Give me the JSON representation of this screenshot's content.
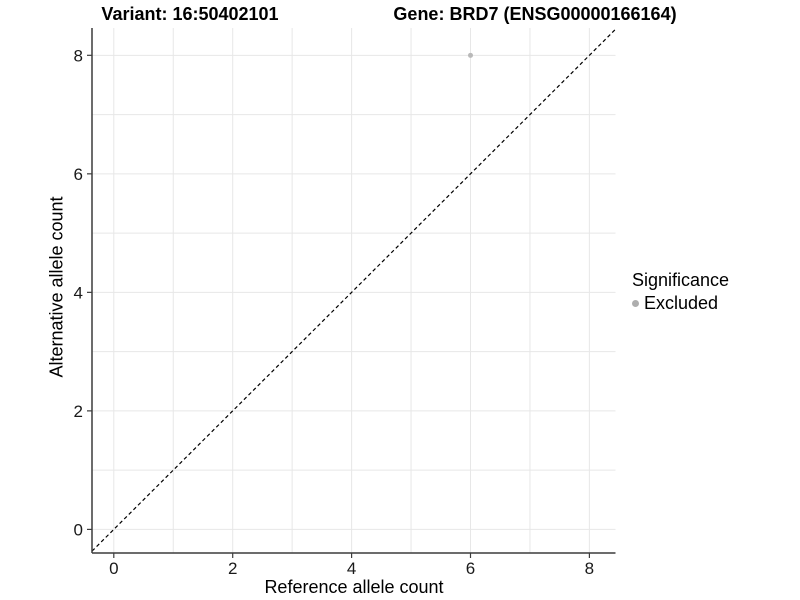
{
  "titles": {
    "variant": "Variant: 16:50402101",
    "gene": "Gene: BRD7 (ENSG00000166164)"
  },
  "axes": {
    "x_label": "Reference allele count",
    "y_label": "Alternative allele count"
  },
  "legend": {
    "title": "Significance",
    "items": [
      {
        "label": "Excluded",
        "color": "#aeaeae"
      }
    ]
  },
  "colors": {
    "background": "#ffffff",
    "gridline": "#e7e7e7",
    "axis_line": "#3c3c3c",
    "tick_mark": "#3c3c3c",
    "tick_text": "#1a1a1a",
    "reference_line": "#000000",
    "point": "#b9b9b9",
    "legend_key": "#aeaeae"
  },
  "chart_data": {
    "type": "scatter",
    "title": "Variant: 16:50402101   Gene: BRD7 (ENSG00000166164)",
    "xlabel": "Reference allele count",
    "ylabel": "Alternative allele count",
    "xlim": [
      -0.4,
      8.44
    ],
    "ylim": [
      -0.4,
      8.46
    ],
    "x_ticks": [
      0,
      2,
      4,
      6,
      8
    ],
    "y_ticks": [
      0,
      2,
      4,
      6,
      8
    ],
    "gridlines": [
      0,
      1,
      2,
      3,
      4,
      5,
      6,
      7,
      8
    ],
    "grid": true,
    "series": [
      {
        "name": "Excluded",
        "color": "#b9b9b9",
        "points": [
          {
            "x": 6,
            "y": 8
          }
        ]
      }
    ],
    "reference_line": {
      "type": "identity",
      "equation": "y = x",
      "style": "dashed",
      "color": "#000000"
    },
    "legend_position": "right",
    "legend_title": "Significance"
  }
}
